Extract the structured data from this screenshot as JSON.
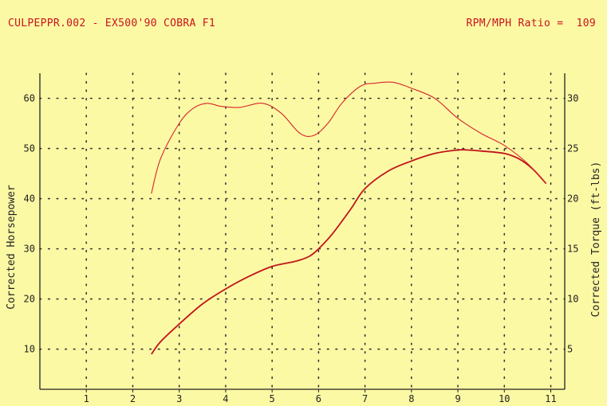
{
  "header": {
    "left": "CULPEPPR.002 - EX500'90 COBRA F1",
    "right_label": "RPM/MPH Ratio =",
    "right_value": "109"
  },
  "chart_data": {
    "type": "line",
    "xlabel": "",
    "x_ticks": [
      "1",
      "2",
      "3",
      "4",
      "5",
      "6",
      "7",
      "8",
      "9",
      "10",
      "11"
    ],
    "xlim": [
      0,
      11.3
    ],
    "y_left": {
      "label": "Corrected Horsepower",
      "ticks": [
        "10",
        "20",
        "30",
        "40",
        "50",
        "60"
      ],
      "ylim": [
        2,
        65
      ]
    },
    "y_right": {
      "label": "Corrected Torque (ft-lbs)",
      "ticks": [
        "5",
        "10",
        "15",
        "20",
        "25",
        "30"
      ],
      "ylim": [
        1,
        32.5
      ]
    },
    "grid": true,
    "series": [
      {
        "name": "Corrected Horsepower",
        "axis": "left",
        "color": "#c0141c",
        "x": [
          2.4,
          2.6,
          3.0,
          3.5,
          4.0,
          4.5,
          5.0,
          5.5,
          5.8,
          6.0,
          6.3,
          6.7,
          7.0,
          7.5,
          8.0,
          8.5,
          9.0,
          9.2,
          9.5,
          10.0,
          10.3,
          10.6,
          10.9
        ],
        "values": [
          9,
          11.5,
          15,
          19,
          22,
          24.5,
          26.5,
          27.5,
          28.5,
          30,
          33,
          38,
          42,
          45.5,
          47.5,
          49,
          49.7,
          49.7,
          49.5,
          49,
          48,
          46,
          43
        ]
      },
      {
        "name": "Corrected Torque (ft-lbs)",
        "axis": "right",
        "color": "#d8242a",
        "x": [
          2.4,
          2.6,
          3.0,
          3.3,
          3.6,
          3.9,
          4.3,
          4.8,
          5.2,
          5.6,
          5.9,
          6.2,
          6.5,
          6.9,
          7.2,
          7.6,
          8.0,
          8.5,
          9.0,
          9.5,
          10.0,
          10.5,
          10.9
        ],
        "values": [
          20.5,
          24,
          27.5,
          29,
          29.5,
          29.2,
          29.1,
          29.5,
          28.5,
          26.5,
          26.3,
          27.5,
          29.5,
          31.2,
          31.5,
          31.6,
          31,
          30,
          28,
          26.5,
          25.3,
          23.5,
          21.5
        ]
      }
    ]
  }
}
